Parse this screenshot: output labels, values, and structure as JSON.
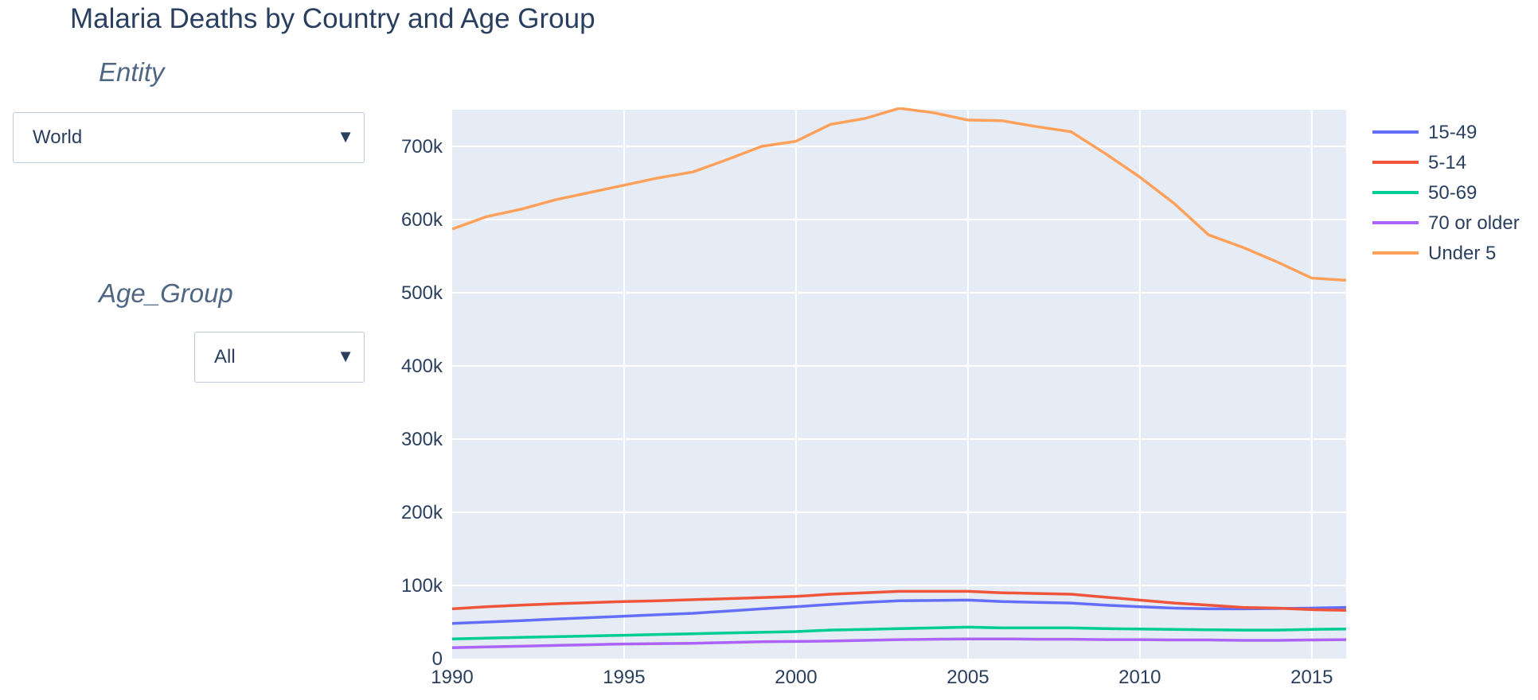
{
  "page": {
    "title": "Malaria Deaths by Country and Age Group"
  },
  "filters": {
    "entity": {
      "label": "Entity",
      "value": "World"
    },
    "age_group": {
      "label": "Age_Group",
      "value": "All"
    }
  },
  "chart_data": {
    "type": "line",
    "title": "",
    "xlabel": "",
    "ylabel": "",
    "xlim": [
      1990,
      2016
    ],
    "ylim": [
      0,
      750000
    ],
    "x_ticks": [
      1990,
      1995,
      2000,
      2005,
      2010,
      2015
    ],
    "x_tick_labels": [
      "1990",
      "1995",
      "2000",
      "2005",
      "2010",
      "2015"
    ],
    "y_ticks": [
      0,
      100000,
      200000,
      300000,
      400000,
      500000,
      600000,
      700000
    ],
    "y_tick_labels": [
      "0",
      "100k",
      "200k",
      "300k",
      "400k",
      "500k",
      "600k",
      "700k"
    ],
    "grid": true,
    "legend_position": "right",
    "x": [
      1990,
      1991,
      1992,
      1993,
      1994,
      1995,
      1996,
      1997,
      1998,
      1999,
      2000,
      2001,
      2002,
      2003,
      2004,
      2005,
      2006,
      2007,
      2008,
      2009,
      2010,
      2011,
      2012,
      2013,
      2014,
      2015,
      2016
    ],
    "series": [
      {
        "name": "15-49",
        "color": "#636efa",
        "values": [
          48000,
          50000,
          52000,
          54000,
          56000,
          58000,
          60000,
          62000,
          65000,
          68000,
          71000,
          74000,
          77000,
          79000,
          79500,
          80000,
          78000,
          77000,
          76000,
          73000,
          71000,
          69000,
          68000,
          68000,
          68500,
          69000,
          70000
        ]
      },
      {
        "name": "5-14",
        "color": "#EF553B",
        "values": [
          68000,
          71000,
          73000,
          75000,
          76500,
          78000,
          79000,
          80500,
          82000,
          83500,
          85000,
          88000,
          90000,
          92000,
          92000,
          92000,
          90000,
          89000,
          88000,
          84000,
          80000,
          76000,
          73000,
          70000,
          69000,
          67000,
          66000
        ]
      },
      {
        "name": "50-69",
        "color": "#00cc96",
        "values": [
          27000,
          28000,
          29000,
          30000,
          31000,
          32000,
          33000,
          34000,
          35000,
          36000,
          37000,
          39000,
          40000,
          41000,
          42000,
          43000,
          42000,
          42000,
          42000,
          41000,
          40500,
          40000,
          39500,
          39000,
          39000,
          40000,
          40500
        ]
      },
      {
        "name": "70 or older",
        "color": "#ab63fa",
        "values": [
          15000,
          16000,
          17000,
          18000,
          19000,
          20000,
          20500,
          21000,
          22000,
          23000,
          23500,
          24000,
          25000,
          26000,
          26500,
          27000,
          27000,
          26500,
          26500,
          26000,
          26000,
          25500,
          25500,
          25000,
          25000,
          25500,
          26000
        ]
      },
      {
        "name": "Under 5",
        "color": "#FFA15A",
        "values": [
          587000,
          604000,
          614000,
          627000,
          637000,
          647000,
          657000,
          665000,
          682000,
          700000,
          707000,
          730000,
          738000,
          752000,
          746000,
          736000,
          735000,
          727000,
          720000,
          690000,
          658000,
          622000,
          579000,
          562000,
          542000,
          520000,
          517000
        ]
      }
    ]
  }
}
